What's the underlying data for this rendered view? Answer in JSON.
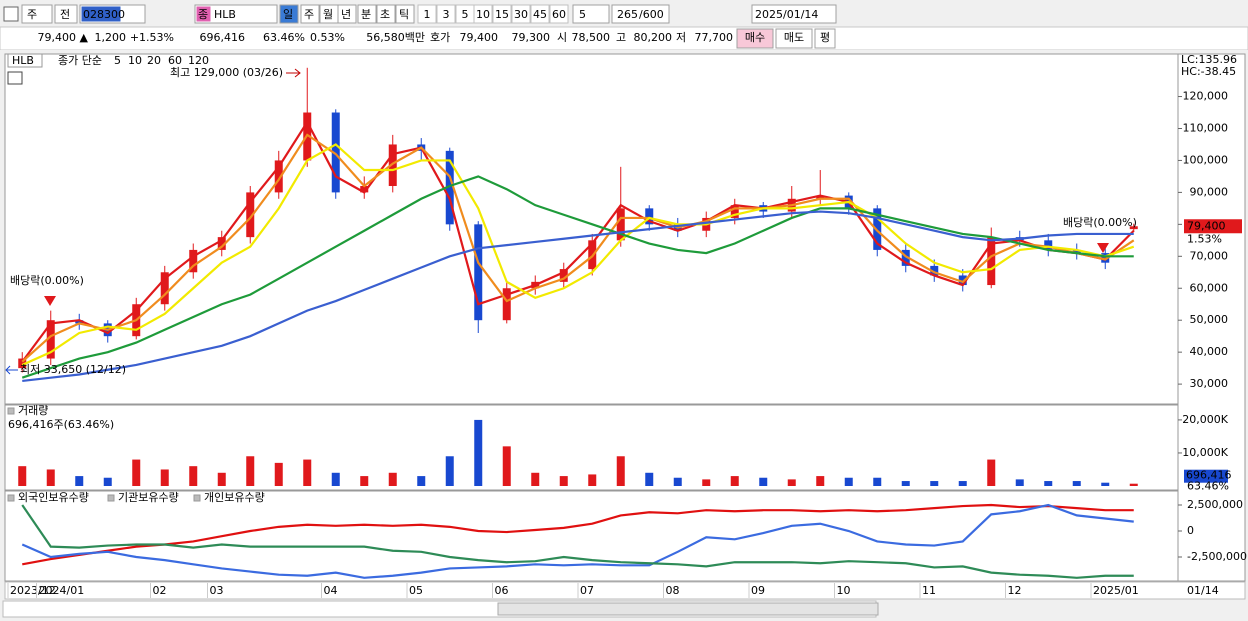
{
  "toolbar": {
    "market": "주",
    "prev": "전",
    "code": "028300",
    "name_tag": "종",
    "name": "HLB",
    "periods": [
      "일",
      "주",
      "월",
      "년",
      "분",
      "초",
      "틱"
    ],
    "intervals": [
      "1",
      "3",
      "5",
      "10",
      "15",
      "30",
      "45",
      "60"
    ],
    "unit": "5",
    "count": "265",
    "max": "/600",
    "date": "2025/01/14"
  },
  "quote": {
    "price": "79,400 ▲",
    "change": "1,200",
    "rate": "+1.53%",
    "volume": "696,416",
    "vol_ratio": "63.46%",
    "turnover": "0.53%",
    "amount": "56,580백만",
    "hoga_label": "호가",
    "ask": "79,400",
    "bid": "79,300",
    "open_label": "시",
    "open": "78,500",
    "high_label": "고",
    "high": "80,200",
    "low_label": "저",
    "low": "77,700",
    "buy": "매수",
    "sell": "매도",
    "avg": "평"
  },
  "chart_data": [
    {
      "type": "candlestick",
      "title": "HLB",
      "ma_label": "종가 단순",
      "up_color": "#e0191c",
      "down_color": "#1848d0",
      "open": [
        35000,
        38000,
        50000,
        49000,
        45000,
        55000,
        65000,
        72000,
        76000,
        90000,
        100000,
        115000,
        90000,
        92000,
        105000,
        103000,
        80000,
        50000,
        60000,
        62000,
        66000,
        75000,
        85000,
        80000,
        78000,
        82000,
        86000,
        84000,
        88000,
        89000,
        85000,
        72000,
        67000,
        64000,
        61000,
        76000,
        75000,
        72000,
        71000,
        78500
      ],
      "high": [
        40000,
        53000,
        52000,
        50000,
        57000,
        67000,
        74000,
        78000,
        92000,
        103000,
        129000,
        116000,
        95000,
        108000,
        107000,
        104000,
        81000,
        62000,
        64000,
        68000,
        77000,
        98000,
        86000,
        82000,
        84000,
        88000,
        87000,
        92000,
        97000,
        90000,
        86000,
        74000,
        69000,
        66000,
        79000,
        78000,
        77000,
        74000,
        73000,
        80200
      ],
      "low": [
        33650,
        36000,
        47000,
        43000,
        44000,
        53000,
        63000,
        70000,
        74000,
        88000,
        98000,
        88000,
        88000,
        90000,
        100000,
        78000,
        46000,
        49000,
        58000,
        60000,
        64000,
        73000,
        78000,
        76000,
        76000,
        80000,
        82000,
        82000,
        86000,
        83000,
        70000,
        65000,
        62000,
        59000,
        60000,
        73000,
        70000,
        69000,
        66000,
        77700
      ],
      "close": [
        38000,
        50000,
        49000,
        45000,
        55000,
        65000,
        72000,
        76000,
        90000,
        100000,
        115000,
        90000,
        92000,
        105000,
        103000,
        80000,
        50000,
        60000,
        62000,
        66000,
        75000,
        85000,
        80000,
        78000,
        82000,
        86000,
        84000,
        88000,
        89000,
        85000,
        72000,
        67000,
        64000,
        61000,
        76000,
        75000,
        72000,
        71000,
        68000,
        79400
      ],
      "series": [
        {
          "name": "5",
          "color": "#e0191c",
          "values": [
            37000,
            49000,
            50000,
            46000,
            53000,
            63000,
            70000,
            75000,
            87000,
            98000,
            112000,
            95000,
            90000,
            102000,
            104000,
            88000,
            55000,
            58000,
            61000,
            65000,
            74000,
            86000,
            81000,
            78000,
            81000,
            86000,
            85000,
            87000,
            89000,
            87000,
            74000,
            68000,
            64000,
            61000,
            74000,
            75000,
            72000,
            71000,
            69000,
            78000
          ]
        },
        {
          "name": "10",
          "color": "#f08c1e",
          "values": [
            37000,
            45000,
            49000,
            47000,
            50000,
            58000,
            67000,
            73000,
            82000,
            94000,
            108000,
            102000,
            92000,
            99000,
            104000,
            95000,
            68000,
            56000,
            60000,
            63000,
            70000,
            82000,
            82000,
            79000,
            81000,
            85000,
            85000,
            86000,
            88000,
            88000,
            78000,
            70000,
            65000,
            62000,
            70000,
            74000,
            73000,
            71000,
            69000,
            75000
          ]
        },
        {
          "name": "20",
          "color": "#f2ea00",
          "values": [
            36000,
            40000,
            46000,
            48000,
            47000,
            52000,
            60000,
            68000,
            73000,
            85000,
            100000,
            105000,
            97000,
            97000,
            100000,
            100000,
            85000,
            62000,
            57000,
            60000,
            65000,
            75000,
            82000,
            80000,
            80000,
            83000,
            85000,
            85000,
            86000,
            87000,
            82000,
            74000,
            68000,
            65000,
            66000,
            72000,
            73000,
            72000,
            70000,
            73000
          ]
        },
        {
          "name": "60",
          "color": "#1e9b3a",
          "values": [
            32000,
            35000,
            38000,
            40000,
            43000,
            47000,
            51000,
            55000,
            58000,
            63000,
            68000,
            73000,
            78000,
            83000,
            88000,
            92000,
            95000,
            91000,
            86000,
            83000,
            80000,
            77000,
            74000,
            72000,
            71000,
            74000,
            78000,
            82000,
            85000,
            85000,
            83000,
            81000,
            79000,
            77000,
            76000,
            74000,
            72000,
            71000,
            70000,
            70000
          ]
        },
        {
          "name": "120",
          "color": "#3a5fd0",
          "values": [
            31000,
            32000,
            33000,
            34500,
            36000,
            38000,
            40000,
            42000,
            45000,
            49000,
            53000,
            56000,
            59500,
            63000,
            66500,
            70000,
            72500,
            73500,
            74500,
            75500,
            76500,
            77500,
            78500,
            79500,
            80500,
            81500,
            82500,
            83500,
            84000,
            83500,
            82000,
            80000,
            78000,
            76000,
            75000,
            75500,
            76500,
            77000,
            77000,
            77000
          ]
        }
      ],
      "ylim": [
        24400,
        133000
      ],
      "yticks": [
        {
          "value": 30000,
          "label": "30,000"
        },
        {
          "value": 40000,
          "label": "40,000"
        },
        {
          "value": 50000,
          "label": "50,000"
        },
        {
          "value": 60000,
          "label": "60,000"
        },
        {
          "value": 70000,
          "label": "70,000"
        },
        {
          "value": 80000,
          "label": "80,000"
        },
        {
          "value": 90000,
          "label": "90,000"
        },
        {
          "value": 100000,
          "label": "100,000"
        },
        {
          "value": 110000,
          "label": "110,000"
        },
        {
          "value": 120000,
          "label": "120,000"
        }
      ],
      "high_label": "최고 129,000 (03/26)",
      "low_label": "최저 33,650 (12/12)",
      "dividend_labels": [
        "배당락(0.00%)",
        "배당락(0.00%)"
      ],
      "lc": "LC:135.96",
      "hc": "HC:-38.45",
      "last": {
        "value": 79400,
        "label": "79,400"
      },
      "last_change": "1.53%"
    },
    {
      "type": "bar",
      "title": "거래량",
      "subtitle": "696,416주(63.46%)",
      "values": [
        6000,
        5000,
        3000,
        2500,
        8000,
        5000,
        6000,
        4000,
        9000,
        7000,
        8000,
        4000,
        3000,
        4000,
        3000,
        9000,
        20000,
        12000,
        4000,
        3000,
        3500,
        9000,
        4000,
        2500,
        2000,
        3000,
        2500,
        2000,
        3000,
        2500,
        2500,
        1500,
        1500,
        1500,
        8000,
        2000,
        1500,
        1500,
        1000,
        696.416
      ],
      "ylim": [
        0,
        23000
      ],
      "yticks": [
        {
          "value": 20000,
          "label": "20,000K"
        },
        {
          "value": 10000,
          "label": "10,000K"
        }
      ],
      "last": {
        "value": 696.416,
        "label": "696,416"
      },
      "last_ratio": "63.46%"
    },
    {
      "type": "line",
      "categories": [
        "2023/12",
        "2024/01",
        null,
        null,
        null,
        "02",
        null,
        "03",
        null,
        null,
        null,
        "04",
        null,
        null,
        "05",
        null,
        null,
        "06",
        null,
        null,
        "07",
        null,
        null,
        "08",
        null,
        null,
        "09",
        null,
        null,
        "10",
        null,
        null,
        "11",
        null,
        null,
        "12",
        null,
        null,
        "2025/01",
        null
      ],
      "series": [
        {
          "name": "외국인보유수량",
          "color": "#e01010",
          "values": [
            -3200000,
            -2700000,
            -2300000,
            -1900000,
            -1500000,
            -1300000,
            -1000000,
            -500000,
            0,
            400000,
            600000,
            500000,
            600000,
            500000,
            600000,
            400000,
            0,
            -100000,
            100000,
            300000,
            700000,
            1500000,
            1800000,
            1700000,
            2000000,
            1900000,
            2000000,
            2000000,
            1900000,
            2000000,
            1900000,
            2000000,
            2200000,
            2400000,
            2500000,
            2300000,
            2400000,
            2200000,
            2000000,
            2000000
          ]
        },
        {
          "name": "기관보유수량",
          "color": "#3b6be0",
          "values": [
            -1300000,
            -2500000,
            -2200000,
            -2000000,
            -2500000,
            -2800000,
            -3200000,
            -3600000,
            -3900000,
            -4200000,
            -4300000,
            -4000000,
            -4500000,
            -4300000,
            -4000000,
            -3600000,
            -3500000,
            -3400000,
            -3200000,
            -3300000,
            -3200000,
            -3300000,
            -3300000,
            -2000000,
            -600000,
            -800000,
            -200000,
            500000,
            700000,
            0,
            -1000000,
            -1300000,
            -1400000,
            -1000000,
            1600000,
            1900000,
            2500000,
            1500000,
            1200000,
            900000
          ]
        },
        {
          "name": "개인보유수량",
          "color": "#2e8b57",
          "values": [
            2500000,
            -1500000,
            -1600000,
            -1400000,
            -1300000,
            -1300000,
            -1600000,
            -1300000,
            -1500000,
            -1500000,
            -1500000,
            -1500000,
            -1500000,
            -1900000,
            -2000000,
            -2500000,
            -2800000,
            -3000000,
            -2900000,
            -2500000,
            -2800000,
            -3000000,
            -3100000,
            -3200000,
            -3400000,
            -3000000,
            -3000000,
            -3000000,
            -3100000,
            -2900000,
            -3000000,
            -3100000,
            -3500000,
            -3400000,
            -4000000,
            -4200000,
            -4300000,
            -4500000,
            -4300000,
            -4300000
          ]
        }
      ],
      "ylim": [
        -4710000,
        3750000
      ],
      "yticks": [
        {
          "value": 2500000,
          "label": "2,500,000"
        },
        0,
        {
          "value": -2500000,
          "label": "-2,500,000"
        }
      ],
      "cursor_label": "01/14"
    }
  ]
}
